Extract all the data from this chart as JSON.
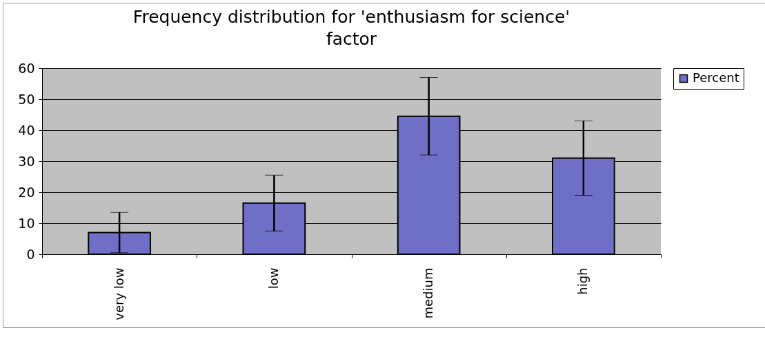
{
  "chart_data": {
    "type": "bar",
    "title": "Frequency distribution for 'enthusiasm for science' factor",
    "categories": [
      "very low",
      "low",
      "medium",
      "high"
    ],
    "series": [
      {
        "name": "Percent",
        "color": "#6f6fc8",
        "values": [
          7,
          16.5,
          44.5,
          31
        ],
        "errors": [
          6.5,
          9,
          12.5,
          12
        ]
      }
    ],
    "ylim": [
      0,
      60
    ],
    "yticks": [
      0,
      10,
      20,
      30,
      40,
      50,
      60
    ],
    "grid": "y",
    "legend": "right"
  }
}
